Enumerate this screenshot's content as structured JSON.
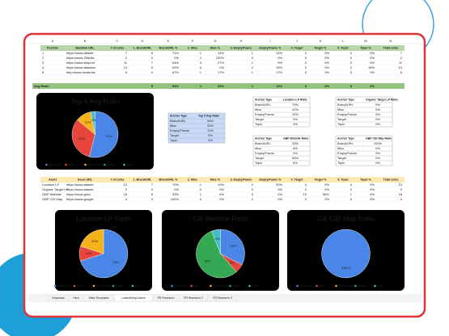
{
  "columns": [
    "A",
    "B",
    "C",
    "D",
    "E",
    "F",
    "G",
    "H",
    "I",
    "J",
    "K",
    "L",
    "M",
    "N"
  ],
  "top_table": {
    "header": [
      "Position",
      "Backlink URL",
      "# of Links",
      "1. Brand/URL",
      "Brand/URL %",
      "2. Misc",
      "Misc %",
      "3. Empty/Frame",
      "Empty/Frame %",
      "4. Target",
      "Target %",
      "5. Topic",
      "Topic %",
      "Total Links"
    ],
    "rows": [
      [
        "1",
        "https://www.atlante",
        "7",
        "5",
        "71%",
        "1",
        "14%",
        "1",
        "14%",
        "0",
        "0%",
        "0",
        "0%",
        "7"
      ],
      [
        "2",
        "https://www.20dolla",
        "2",
        "0",
        "0%",
        "2",
        "100%",
        "0",
        "0%",
        "0",
        "0%",
        "0",
        "0%",
        "2"
      ],
      [
        "3",
        "https://www.theprint",
        "11",
        "7",
        "64%",
        "3",
        "27%",
        "1",
        "9%",
        "0",
        "0%",
        "0",
        "0%",
        "11"
      ],
      [
        "4",
        "https://www.atlantan",
        "13",
        "9",
        "69%",
        "0",
        "0%",
        "2",
        "15%",
        "0",
        "0%",
        "2",
        "15%",
        "13"
      ],
      [
        "5",
        "http://www.bestdubs",
        "6",
        "4",
        "67%",
        "1",
        "17%",
        "1",
        "17%",
        "0",
        "0%",
        "0",
        "0%",
        "6"
      ]
    ],
    "avg_label": "Avg Ratio",
    "avg": [
      "5",
      "54%",
      "1",
      "32%",
      "1",
      "11%",
      "0",
      "0%",
      "0",
      "3%"
    ]
  },
  "bottom_table": {
    "header": [
      "Asset",
      "Asset URL",
      "# of Links",
      "1. Brand/URL",
      "Brand/URL %",
      "2. Misc",
      "Misc %",
      "3. Empty/Frame",
      "Empty/Frame %",
      "4. Target",
      "Target %",
      "5. Topic",
      "Topic %",
      "Total Links"
    ],
    "rows": [
      [
        "Location LP",
        "https://www.atlante",
        "10",
        "7",
        "70%",
        "1",
        "10%",
        "2",
        "20%",
        "0",
        "0%",
        "0",
        "0%",
        "10"
      ],
      [
        "Organic Target LP",
        "https://www.atlante",
        "0",
        "0",
        "0%",
        "0",
        "0%",
        "0",
        "0%",
        "0",
        "0%",
        "0",
        "0%",
        "0"
      ],
      [
        "GBP Website",
        "https://local.gl/sh",
        "18",
        "6",
        "33%",
        "1",
        "6%",
        "0",
        "0%",
        "10",
        "56%",
        "1",
        "6%",
        "18"
      ],
      [
        "GBP CID Map",
        "https://www.google",
        "4",
        "4",
        "100%",
        "0",
        "0%",
        "0",
        "0%",
        "0",
        "0%",
        "0",
        "0%",
        "4"
      ]
    ]
  },
  "anchor_tables": [
    {
      "header": [
        "Anchor Type",
        "Top 5 Avg Ratio"
      ],
      "rows": [
        [
          "Brand/URL",
          "54%"
        ],
        [
          "Misc",
          "32%"
        ],
        [
          "Empty/Frame",
          "11%"
        ],
        [
          "Target",
          "0%"
        ],
        [
          "Topic",
          "3%"
        ]
      ]
    },
    {
      "header": [
        "Anchor Type",
        "Location LP Ratio"
      ],
      "rows": [
        [
          "Brand/URL",
          "70%"
        ],
        [
          "Misc",
          "10%"
        ],
        [
          "Empty/Frame",
          "20%"
        ],
        [
          "Target",
          "0%"
        ],
        [
          "Topic",
          "0%"
        ]
      ]
    },
    {
      "header": [
        "Anchor Type",
        "GBP Website Ratio"
      ],
      "rows": [
        [
          "Brand/URL",
          "33%"
        ],
        [
          "Misc",
          "6%"
        ],
        [
          "Empty/Frame",
          "0%"
        ],
        [
          "Target",
          "56%"
        ],
        [
          "Topic",
          "6%"
        ]
      ]
    },
    {
      "header": [
        "Anchor Type",
        "Organic Target LP Ratio"
      ],
      "rows": [
        [
          "Brand/URL",
          "0%"
        ],
        [
          "Misc",
          "0%"
        ],
        [
          "Empty/Frame",
          "0%"
        ],
        [
          "Target",
          "0%"
        ],
        [
          "Topic",
          "0%"
        ]
      ]
    },
    {
      "header": [
        "Anchor Type",
        "GBP CID Map Ratio"
      ],
      "rows": [
        [
          "Brand/URL",
          "100%"
        ],
        [
          "Misc",
          "0%"
        ],
        [
          "Empty/Frame",
          "0%"
        ],
        [
          "Target",
          "0%"
        ],
        [
          "Topic",
          "0%"
        ]
      ]
    }
  ],
  "charts": [
    {
      "type": "pie",
      "title": "Top 5 Avg Ratio",
      "categories": [
        "Brand/URL",
        "Misc",
        "Empty/Frame",
        "Target",
        "Topic"
      ],
      "colors": [
        "#4a86e8",
        "#e8453c",
        "#f6b21b",
        "#34a853",
        "#46bdc6"
      ],
      "values": [
        54,
        32,
        11,
        0,
        3
      ],
      "value_labels": [
        "54%",
        "32%",
        "11%",
        "0%",
        "3%"
      ]
    },
    {
      "type": "pie",
      "title": "Location LP Ratio",
      "categories": [
        "Brand/URL",
        "Misc",
        "Empty/Frame",
        "Target",
        "Topic"
      ],
      "colors": [
        "#4a86e8",
        "#e8453c",
        "#f6b21b",
        "#34a853",
        "#46bdc6"
      ],
      "values": [
        70,
        10,
        20,
        0,
        0
      ],
      "value_labels": [
        "70%",
        "10%",
        "20%",
        "0%",
        "0%"
      ]
    },
    {
      "type": "pie",
      "title": "GB Website Ratio",
      "categories": [
        "Brand/URL",
        "Misc",
        "Empty/Frame",
        "Target",
        "Topic"
      ],
      "colors": [
        "#4a86e8",
        "#e8453c",
        "#f6b21b",
        "#34a853",
        "#46bdc6"
      ],
      "values": [
        33,
        6,
        0,
        56,
        6
      ],
      "value_labels": [
        "33%",
        "6%",
        "0%",
        "56%",
        "6%"
      ]
    },
    {
      "type": "pie",
      "title": "GB CID Map Ratio",
      "categories": [
        "Brand/URL",
        "Misc",
        "Empty/Frame",
        "Target",
        "Topic"
      ],
      "colors": [
        "#4a86e8",
        "#e8453c",
        "#f6b21b",
        "#34a853",
        "#46bdc6"
      ],
      "values": [
        100,
        0,
        0,
        0,
        0
      ],
      "value_labels": [
        "100%",
        "0%",
        "0%",
        "0%",
        "0%"
      ]
    }
  ],
  "tabs": [
    "Keywords",
    "Hero",
    "Meta Templates",
    "Linkbuilding Advice",
    "PR Research",
    "PR Research 2",
    "PR Research 3"
  ]
}
